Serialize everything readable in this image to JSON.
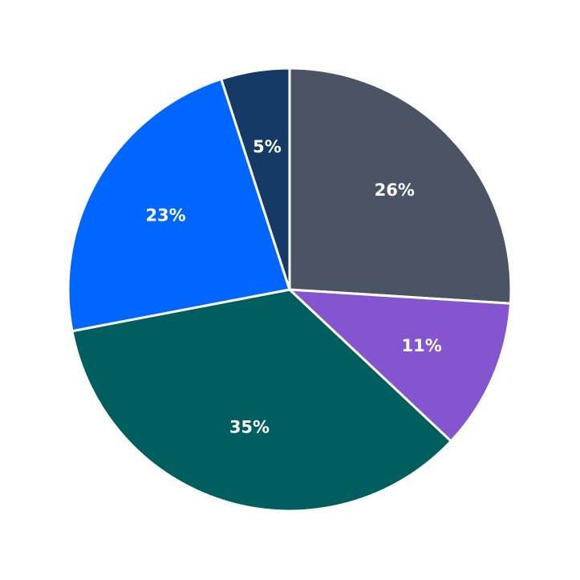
{
  "chart_data": {
    "type": "pie",
    "values": [
      26,
      11,
      35,
      23,
      5
    ],
    "value_labels": [
      "26%",
      "11%",
      "35%",
      "23%",
      "5%"
    ],
    "colors": [
      "#4a5464",
      "#8455cf",
      "#005e5e",
      "#0066ff",
      "#163a66"
    ]
  }
}
